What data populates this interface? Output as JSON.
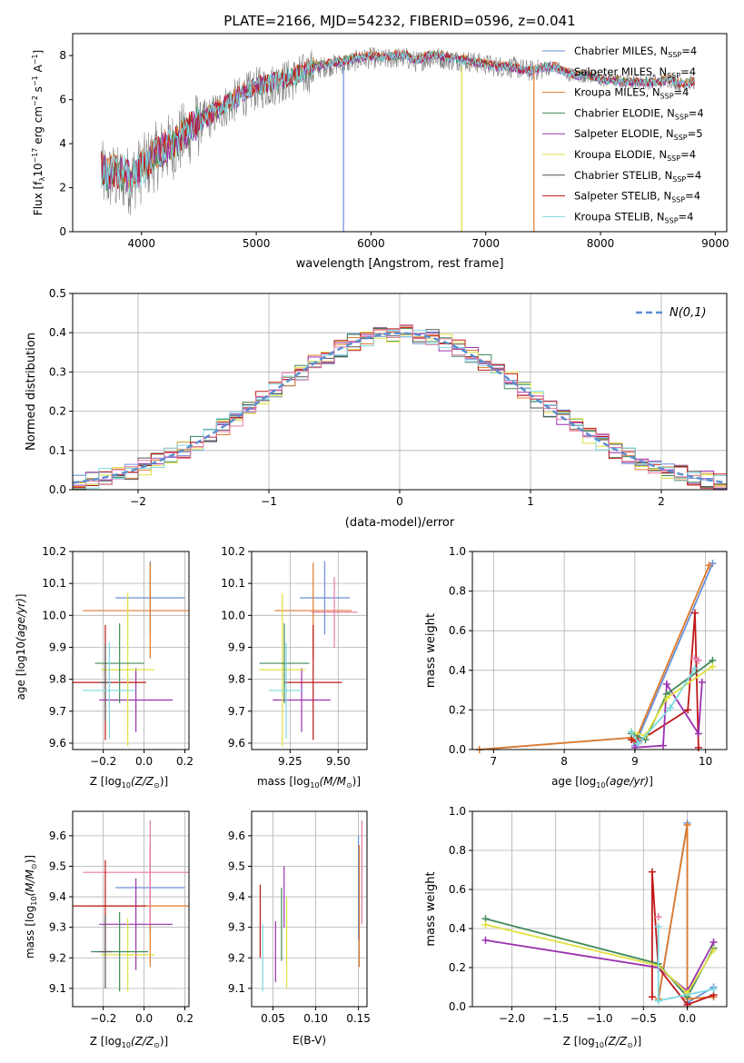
{
  "title": "PLATE=2166, MJD=54232, FIBERID=0596, z=0.041",
  "colors": [
    "#6a8fd8",
    "#9aa6b8",
    "#e07a2a",
    "#3f8a5a",
    "#9b30b0",
    "#e0e040",
    "#555555",
    "#c01818",
    "#7fd8e0"
  ],
  "legend_models": [
    {
      "label": "Chabrier MILES, N",
      "sub": "SSP",
      "suffix": "=4",
      "color": "#6a8fd8"
    },
    {
      "label": "Salpeter MILES, N",
      "sub": "SSP",
      "suffix": "=4",
      "color": "#9aa6b8"
    },
    {
      "label": "Kroupa MILES, N",
      "sub": "SSP",
      "suffix": "=4",
      "color": "#e07a2a"
    },
    {
      "label": "Chabrier ELODIE, N",
      "sub": "SSP",
      "suffix": "=4",
      "color": "#3f8a5a"
    },
    {
      "label": "Salpeter ELODIE, N",
      "sub": "SSP",
      "suffix": "=5",
      "color": "#9b30b0"
    },
    {
      "label": "Kroupa ELODIE, N",
      "sub": "SSP",
      "suffix": "=4",
      "color": "#e0e040"
    },
    {
      "label": "Chabrier STELIB, N",
      "sub": "SSP",
      "suffix": "=4",
      "color": "#555555"
    },
    {
      "label": "Salpeter STELIB, N",
      "sub": "SSP",
      "suffix": "=4",
      "color": "#c01818"
    },
    {
      "label": "Kroupa STELIB, N",
      "sub": "SSP",
      "suffix": "=4",
      "color": "#7fd8e0"
    }
  ],
  "chart_data": [
    {
      "id": "spectrum",
      "type": "line",
      "xlabel": "wavelength [Angstrom, rest frame]",
      "ylabel": "Flux [f",
      "xlim": [
        3400,
        9100
      ],
      "ylim": [
        0,
        9
      ],
      "xticks": [
        4000,
        5000,
        6000,
        7000,
        8000,
        9000
      ],
      "yticks": [
        0,
        2,
        4,
        6,
        8
      ],
      "series": [
        {
          "name": "data",
          "color": "#808080",
          "x": [
            3650,
            3700,
            3750,
            3800,
            3850,
            3900,
            3950,
            4000,
            4100,
            4200,
            4300,
            4400,
            4500,
            4600,
            4700,
            4800,
            4900,
            5000,
            5100,
            5200,
            5300,
            5400,
            5500,
            5600,
            5700,
            5800,
            5900,
            6000,
            6100,
            6200,
            6300,
            6400,
            6500,
            6600,
            6700,
            6800,
            6900,
            7000,
            7100,
            7200,
            7300,
            7400,
            7500,
            7600,
            7700,
            7800,
            7900,
            8000,
            8100,
            8200,
            8300,
            8400,
            8500,
            8600,
            8700,
            8800
          ],
          "y": [
            2.6,
            2.4,
            2.5,
            2.3,
            2.5,
            2.3,
            2.6,
            2.8,
            3.3,
            3.7,
            4.0,
            4.5,
            4.9,
            5.2,
            5.6,
            5.9,
            6.2,
            6.5,
            6.6,
            6.8,
            6.9,
            7.1,
            7.4,
            7.5,
            7.6,
            7.7,
            7.8,
            7.9,
            7.8,
            7.9,
            7.9,
            7.7,
            7.9,
            7.9,
            7.8,
            7.8,
            7.7,
            7.6,
            7.5,
            7.5,
            7.4,
            7.3,
            7.4,
            7.5,
            7.2,
            7.1,
            7.1,
            6.9,
            6.9,
            6.8,
            6.8,
            6.8,
            6.8,
            6.9,
            6.7,
            6.8
          ]
        },
        {
          "name": "model",
          "color": "#7fd8e0",
          "x": [
            3650,
            3700,
            3750,
            3800,
            3850,
            3900,
            3950,
            4000,
            4100,
            4200,
            4300,
            4400,
            4500,
            4600,
            4700,
            4800,
            4900,
            5000,
            5100,
            5200,
            5300,
            5400,
            5500,
            5600,
            5700,
            5800,
            5900,
            6000,
            6100,
            6200,
            6300,
            6400,
            6500,
            6600,
            6700,
            6800,
            6900,
            7000,
            7100,
            7200,
            7300,
            7400,
            7500,
            7600,
            7700,
            7800,
            7900,
            8000,
            8100,
            8200,
            8300,
            8400,
            8500,
            8600,
            8700,
            8800
          ],
          "y": [
            2.9,
            2.6,
            2.7,
            2.6,
            2.7,
            2.5,
            2.7,
            2.9,
            3.4,
            3.8,
            4.1,
            4.6,
            5.0,
            5.3,
            5.7,
            6.0,
            6.3,
            6.6,
            6.7,
            6.9,
            7.0,
            7.2,
            7.5,
            7.6,
            7.7,
            7.8,
            7.9,
            8.0,
            7.9,
            8.0,
            8.0,
            7.8,
            8.0,
            8.0,
            7.9,
            7.8,
            7.7,
            7.6,
            7.5,
            7.5,
            7.4,
            7.3,
            7.5,
            7.5,
            7.2,
            7.1,
            7.1,
            6.9,
            6.9,
            6.8,
            6.8,
            6.8,
            6.8,
            6.9,
            6.7,
            6.8
          ]
        }
      ],
      "dips": [
        {
          "x": 5760,
          "y": 0,
          "color": "#6a8fd8"
        },
        {
          "x": 6790,
          "y": 0,
          "color": "#e0e040"
        },
        {
          "x": 7420,
          "y": 0,
          "color": "#e07a2a"
        }
      ]
    },
    {
      "id": "residuals",
      "type": "line",
      "xlabel": "(data-model)/error",
      "ylabel": "Normed distribution",
      "xlim": [
        -2.5,
        2.5
      ],
      "ylim": [
        0,
        0.5
      ],
      "xticks": [
        -2,
        -1,
        0,
        1,
        2
      ],
      "xticklabels": [
        "−2",
        "−1",
        "0",
        "1",
        "2"
      ],
      "yticks": [
        0,
        0.1,
        0.2,
        0.3,
        0.4,
        0.5
      ],
      "yticklabels": [
        "0.0",
        "0.1",
        "0.2",
        "0.3",
        "0.4",
        "0.5"
      ],
      "reference": {
        "name": "N(0,1)",
        "color": "#5b8fd0"
      },
      "hist_colors": [
        "#6a8fd8",
        "#e07a2a",
        "#3f8a5a",
        "#9b30b0",
        "#e0e040",
        "#555555",
        "#c01818",
        "#7fd8e0",
        "#e879a8"
      ]
    },
    {
      "id": "age_vs_Z",
      "type": "scatter",
      "xlabel": "Z [log",
      "ylabel": "age  [log",
      "xlim": [
        -0.35,
        0.22
      ],
      "ylim": [
        9.58,
        10.2
      ],
      "xticks": [
        -0.2,
        0,
        0.2
      ],
      "xticklabels": [
        "−0.2",
        "0.0",
        "0.2"
      ],
      "yticks": [
        9.6,
        9.7,
        9.8,
        9.9,
        10.0,
        10.1,
        10.2
      ],
      "yticklabels": [
        "9.6",
        "9.7",
        "9.8",
        "9.9",
        "10.0",
        "10.1",
        "10.2"
      ],
      "points": [
        {
          "x": 0.03,
          "y": 10.055,
          "xerr": 0.17,
          "yerr": 0.115,
          "color": "#6a8fd8"
        },
        {
          "x": 0.03,
          "y": 10.015,
          "xerr": 0.33,
          "yerr": 0.15,
          "color": "#e07a2a"
        },
        {
          "x": -0.04,
          "y": 9.735,
          "xerr": 0.18,
          "yerr": 0.1,
          "color": "#9b30b0"
        },
        {
          "x": -0.19,
          "y": 9.79,
          "xerr": 0.2,
          "yerr": 0.18,
          "color": "#c01818"
        },
        {
          "x": -0.08,
          "y": 9.83,
          "xerr": 0.13,
          "yerr": 0.24,
          "color": "#e0e040"
        },
        {
          "x": -0.12,
          "y": 9.85,
          "xerr": 0.12,
          "yerr": 0.125,
          "color": "#3f8a5a"
        },
        {
          "x": -0.19,
          "y": 9.79,
          "xerr": 0.03,
          "yerr": 0.12,
          "color": "#555555"
        },
        {
          "x": -0.17,
          "y": 9.765,
          "xerr": 0.13,
          "yerr": 0.15,
          "color": "#7fd8e0"
        }
      ]
    },
    {
      "id": "age_vs_mass",
      "type": "scatter",
      "xlabel": "mass [log",
      "ylabel": "",
      "xlim": [
        9.05,
        9.65
      ],
      "ylim": [
        9.58,
        10.2
      ],
      "xticks": [
        9.25,
        9.5
      ],
      "xticklabels": [
        "9.25",
        "9.50"
      ],
      "yticks": [
        9.6,
        9.7,
        9.8,
        9.9,
        10.0,
        10.1,
        10.2
      ],
      "yticklabels": [
        "9.6",
        "9.7",
        "9.8",
        "9.9",
        "10.0",
        "10.1",
        "10.2"
      ],
      "points": [
        {
          "x": 9.43,
          "y": 10.055,
          "xerr": 0.13,
          "yerr": 0.115,
          "color": "#6a8fd8"
        },
        {
          "x": 9.37,
          "y": 10.015,
          "xerr": 0.2,
          "yerr": 0.15,
          "color": "#e07a2a"
        },
        {
          "x": 9.48,
          "y": 10.01,
          "xerr": 0.12,
          "yerr": 0.11,
          "color": "#e879a8"
        },
        {
          "x": 9.31,
          "y": 9.735,
          "xerr": 0.15,
          "yerr": 0.1,
          "color": "#9b30b0"
        },
        {
          "x": 9.37,
          "y": 9.79,
          "xerr": 0.15,
          "yerr": 0.18,
          "color": "#c01818"
        },
        {
          "x": 9.21,
          "y": 9.83,
          "xerr": 0.12,
          "yerr": 0.24,
          "color": "#e0e040"
        },
        {
          "x": 9.22,
          "y": 9.85,
          "xerr": 0.13,
          "yerr": 0.125,
          "color": "#3f8a5a"
        },
        {
          "x": 9.23,
          "y": 9.765,
          "xerr": 0.09,
          "yerr": 0.15,
          "color": "#7fd8e0"
        }
      ]
    },
    {
      "id": "weight_vs_age",
      "type": "line",
      "xlabel": "age  [log",
      "ylabel": "mass weight",
      "xlim": [
        6.7,
        10.3
      ],
      "ylim": [
        0,
        1
      ],
      "xticks": [
        7,
        8,
        9,
        10
      ],
      "xticklabels": [
        "7",
        "8",
        "9",
        "10"
      ],
      "yticks": [
        0,
        0.2,
        0.4,
        0.6,
        0.8,
        1.0
      ],
      "yticklabels": [
        "0.0",
        "0.2",
        "0.4",
        "0.6",
        "0.8",
        "1.0"
      ],
      "series": [
        {
          "color": "#6a8fd8",
          "x": [
            6.8,
            8.95,
            9.0,
            10.1
          ],
          "y": [
            0.0,
            0.06,
            0.02,
            0.94
          ]
        },
        {
          "color": "#e07a2a",
          "x": [
            6.8,
            8.95,
            9.0,
            10.05
          ],
          "y": [
            0.0,
            0.06,
            0.04,
            0.93
          ]
        },
        {
          "color": "#c01818",
          "x": [
            8.95,
            9.05,
            9.75,
            9.85,
            9.9
          ],
          "y": [
            0.05,
            0.04,
            0.2,
            0.69,
            0.01
          ]
        },
        {
          "color": "#9b30b0",
          "x": [
            9.0,
            9.4,
            9.45,
            9.9,
            9.95
          ],
          "y": [
            0.01,
            0.02,
            0.33,
            0.08,
            0.34
          ]
        },
        {
          "color": "#3f8a5a",
          "x": [
            8.95,
            9.15,
            9.45,
            10.1
          ],
          "y": [
            0.08,
            0.05,
            0.28,
            0.45
          ]
        },
        {
          "color": "#e0e040",
          "x": [
            8.95,
            9.15,
            9.45,
            10.1
          ],
          "y": [
            0.09,
            0.07,
            0.26,
            0.42
          ]
        },
        {
          "color": "#7fd8e0",
          "x": [
            8.95,
            9.05,
            9.5,
            9.85
          ],
          "y": [
            0.09,
            0.03,
            0.21,
            0.41
          ]
        },
        {
          "color": "#e879a8",
          "x": [
            9.85,
            9.9
          ],
          "y": [
            0.46,
            0.45
          ]
        }
      ]
    },
    {
      "id": "mass_vs_Z",
      "type": "scatter",
      "xlabel": "Z [log",
      "ylabel": "mass [log",
      "xlim": [
        -0.35,
        0.22
      ],
      "ylim": [
        9.04,
        9.68
      ],
      "xticks": [
        -0.2,
        0,
        0.2
      ],
      "xticklabels": [
        "−0.2",
        "0.0",
        "0.2"
      ],
      "yticks": [
        9.1,
        9.2,
        9.3,
        9.4,
        9.5,
        9.6
      ],
      "yticklabels": [
        "9.1",
        "9.2",
        "9.3",
        "9.4",
        "9.5",
        "9.6"
      ],
      "points": [
        {
          "x": 0.03,
          "y": 9.43,
          "xerr": 0.17,
          "yerr": 0.15,
          "color": "#6a8fd8"
        },
        {
          "x": 0.03,
          "y": 9.37,
          "xerr": 0.33,
          "yerr": 0.2,
          "color": "#e07a2a"
        },
        {
          "x": 0.03,
          "y": 9.48,
          "xerr": 0.33,
          "yerr": 0.17,
          "color": "#e879a8"
        },
        {
          "x": -0.04,
          "y": 9.31,
          "xerr": 0.18,
          "yerr": 0.15,
          "color": "#9b30b0"
        },
        {
          "x": -0.19,
          "y": 9.37,
          "xerr": 0.2,
          "yerr": 0.15,
          "color": "#c01818"
        },
        {
          "x": -0.08,
          "y": 9.21,
          "xerr": 0.13,
          "yerr": 0.12,
          "color": "#e0e040"
        },
        {
          "x": -0.12,
          "y": 9.22,
          "xerr": 0.14,
          "yerr": 0.13,
          "color": "#3f8a5a"
        },
        {
          "x": -0.19,
          "y": 9.22,
          "xerr": 0.03,
          "yerr": 0.12,
          "color": "#555555"
        }
      ]
    },
    {
      "id": "mass_vs_ebv",
      "type": "scatter",
      "xlabel": "E(B-V)",
      "ylabel": "",
      "xlim": [
        0.025,
        0.16
      ],
      "ylim": [
        9.04,
        9.68
      ],
      "xticks": [
        0.05,
        0.1,
        0.15
      ],
      "xticklabels": [
        "0.05",
        "0.10",
        "0.15"
      ],
      "yticks": [
        9.1,
        9.2,
        9.3,
        9.4,
        9.5,
        9.6
      ],
      "yticklabels": [
        "9.1",
        "9.2",
        "9.3",
        "9.4",
        "9.5",
        "9.6"
      ],
      "points": [
        {
          "x": 0.035,
          "y": 9.32,
          "xerr": 0,
          "yerr": 0.12,
          "color": "#c01818"
        },
        {
          "x": 0.038,
          "y": 9.2,
          "xerr": 0,
          "yerr": 0.11,
          "color": "#7fd8e0"
        },
        {
          "x": 0.053,
          "y": 9.22,
          "xerr": 0,
          "yerr": 0.1,
          "color": "#9b30b0"
        },
        {
          "x": 0.06,
          "y": 9.31,
          "xerr": 0,
          "yerr": 0.12,
          "color": "#3f8a5a"
        },
        {
          "x": 0.063,
          "y": 9.4,
          "xerr": 0,
          "yerr": 0.1,
          "color": "#9b30b0"
        },
        {
          "x": 0.066,
          "y": 9.25,
          "xerr": 0,
          "yerr": 0.15,
          "color": "#e0e040"
        },
        {
          "x": 0.15,
          "y": 9.43,
          "xerr": 0,
          "yerr": 0.17,
          "color": "#6a8fd8"
        },
        {
          "x": 0.151,
          "y": 9.37,
          "xerr": 0,
          "yerr": 0.2,
          "color": "#e07a2a"
        },
        {
          "x": 0.154,
          "y": 9.48,
          "xerr": 0,
          "yerr": 0.17,
          "color": "#e879a8"
        }
      ]
    },
    {
      "id": "weight_vs_Z",
      "type": "line",
      "xlabel": "Z [log",
      "ylabel": "mass weight",
      "xlim": [
        -2.45,
        0.45
      ],
      "ylim": [
        0,
        1
      ],
      "xticks": [
        -2,
        -1.5,
        -1,
        -0.5,
        0
      ],
      "xticklabels": [
        "−2.0",
        "−1.5",
        "−1.0",
        "−0.5",
        "0.0"
      ],
      "yticks": [
        0,
        0.2,
        0.4,
        0.6,
        0.8,
        1.0
      ],
      "yticklabels": [
        "0.0",
        "0.2",
        "0.4",
        "0.6",
        "0.8",
        "1.0"
      ],
      "series": [
        {
          "color": "#6a8fd8",
          "x": [
            -0.33,
            0.0,
            0.0,
            0.3
          ],
          "y": [
            0.03,
            0.94,
            0.02,
            0.1
          ]
        },
        {
          "color": "#e07a2a",
          "x": [
            -0.33,
            0.0,
            0.0,
            0.3
          ],
          "y": [
            0.04,
            0.93,
            0.04,
            0.05
          ]
        },
        {
          "color": "#c01818",
          "x": [
            -0.4,
            -0.4,
            -0.33,
            0.0,
            0.3
          ],
          "y": [
            0.05,
            0.69,
            0.2,
            0.01,
            0.06
          ]
        },
        {
          "color": "#9b30b0",
          "x": [
            -2.3,
            -0.33,
            0.0,
            0.3
          ],
          "y": [
            0.34,
            0.2,
            0.08,
            0.33
          ]
        },
        {
          "color": "#3f8a5a",
          "x": [
            -2.3,
            -0.33,
            0.0,
            0.3
          ],
          "y": [
            0.45,
            0.22,
            0.05,
            0.3
          ]
        },
        {
          "color": "#e0e040",
          "x": [
            -2.3,
            -0.33,
            0.0,
            0.3
          ],
          "y": [
            0.42,
            0.21,
            0.07,
            0.29
          ]
        },
        {
          "color": "#7fd8e0",
          "x": [
            -0.33,
            -0.33,
            0.3
          ],
          "y": [
            0.41,
            0.03,
            0.09
          ]
        },
        {
          "color": "#e879a8",
          "x": [
            -0.33
          ],
          "y": [
            0.46
          ]
        }
      ]
    }
  ]
}
